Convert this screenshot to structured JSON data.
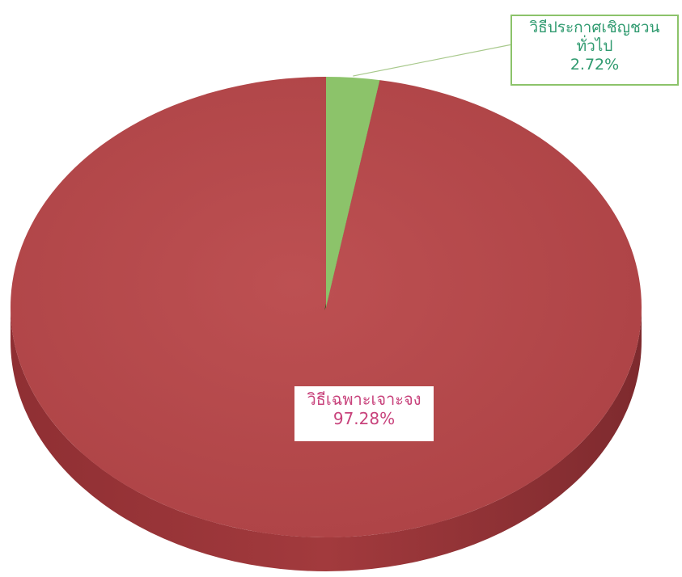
{
  "chart_data": {
    "type": "pie",
    "title": "",
    "slices": [
      {
        "label": "วิธีเฉพาะเจาะจง",
        "value": 97.28,
        "value_label": "97.28%",
        "color": "#b5484a"
      },
      {
        "label_lines": [
          "วิธีประกาศเชิญชวน",
          "ทั่วไป"
        ],
        "label": "วิธีประกาศเชิญชวนทั่วไป",
        "value": 2.72,
        "value_label": "2.72%",
        "color": "#8cc36a"
      }
    ],
    "style": "3d",
    "legend": "none"
  }
}
